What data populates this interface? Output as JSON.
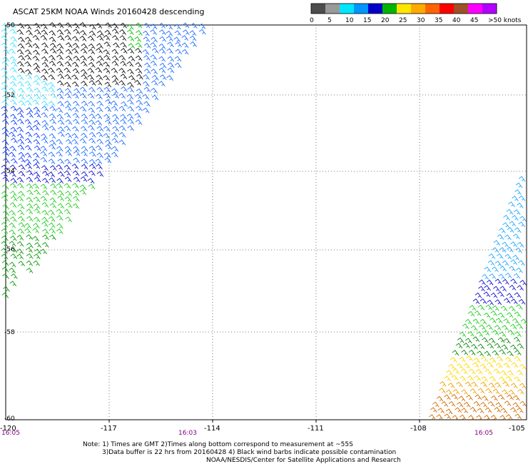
{
  "title": "ASCAT 25KM NOAA Winds 20160428 descending",
  "legend": {
    "labels": [
      "0",
      "5",
      "10",
      "15",
      "20",
      "25",
      "30",
      "35",
      "40",
      "45",
      ">50 knots"
    ],
    "colors": [
      "#4d4d4d",
      "#9a9a9a",
      "#00e6ff",
      "#0096ff",
      "#0000c8",
      "#00b400",
      "#ffe600",
      "#ffaa00",
      "#ff6400",
      "#ff0000",
      "#a05028",
      "#ff00ff",
      "#b400ff"
    ]
  },
  "lat_labels": [
    "-50",
    "-52",
    "-54",
    "-56",
    "-58",
    "-60"
  ],
  "lon_labels": [
    "-120",
    "-117",
    "-114",
    "-111",
    "-108",
    "-105"
  ],
  "time_labels": [
    "16:05",
    "16:03",
    "16:05"
  ],
  "colors": {
    "grid": "#555555",
    "time": "#800080",
    "text": "#000000"
  },
  "notes": {
    "line1": "Note:  1) Times are GMT  2)Times along bottom correspond to measurement at ~55S",
    "line2": "3)Data buffer is 22 hrs from 20160428  4) Black wind barbs indicate possible contamination",
    "line3": "NOAA/NESDIS/Center for Satellite Applications and Research"
  }
}
